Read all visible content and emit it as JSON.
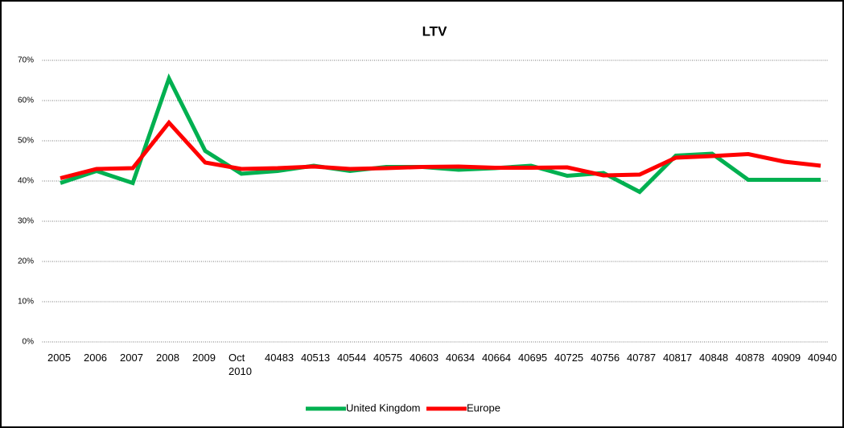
{
  "chart_data": {
    "type": "line",
    "title": "LTV",
    "categories": [
      "2005",
      "2006",
      "2007",
      "2008",
      "2009",
      "Oct 2010",
      "40483",
      "40513",
      "40544",
      "40575",
      "40603",
      "40634",
      "40664",
      "40695",
      "40725",
      "40756",
      "40787",
      "40817",
      "40848",
      "40878",
      "40909",
      "40940"
    ],
    "series": [
      {
        "name": "United Kingdom",
        "color": "#00b050",
        "values": [
          39.5,
          42.5,
          39.5,
          65.5,
          47.5,
          41.8,
          42.5,
          43.8,
          42.5,
          43.5,
          43.5,
          42.8,
          43.2,
          43.8,
          41.3,
          42.0,
          37.3,
          46.3,
          46.8,
          40.3,
          40.3,
          40.3
        ]
      },
      {
        "name": "Europe",
        "color": "#ff0000",
        "values": [
          40.7,
          43.0,
          43.2,
          54.5,
          44.6,
          43.0,
          43.2,
          43.6,
          43.0,
          43.2,
          43.5,
          43.6,
          43.3,
          43.3,
          43.4,
          41.4,
          41.6,
          45.8,
          46.2,
          46.7,
          44.8,
          43.8
        ]
      }
    ],
    "ylim": [
      0,
      70
    ],
    "yticks": [
      {
        "value": 0,
        "label": "0%"
      },
      {
        "value": 10,
        "label": "10%"
      },
      {
        "value": 20,
        "label": "20%"
      },
      {
        "value": 30,
        "label": "30%"
      },
      {
        "value": 40,
        "label": "40%"
      },
      {
        "value": 50,
        "label": "50%"
      },
      {
        "value": 60,
        "label": "60%"
      },
      {
        "value": 70,
        "label": "70%"
      }
    ],
    "grid": true,
    "legend": "bottom"
  }
}
